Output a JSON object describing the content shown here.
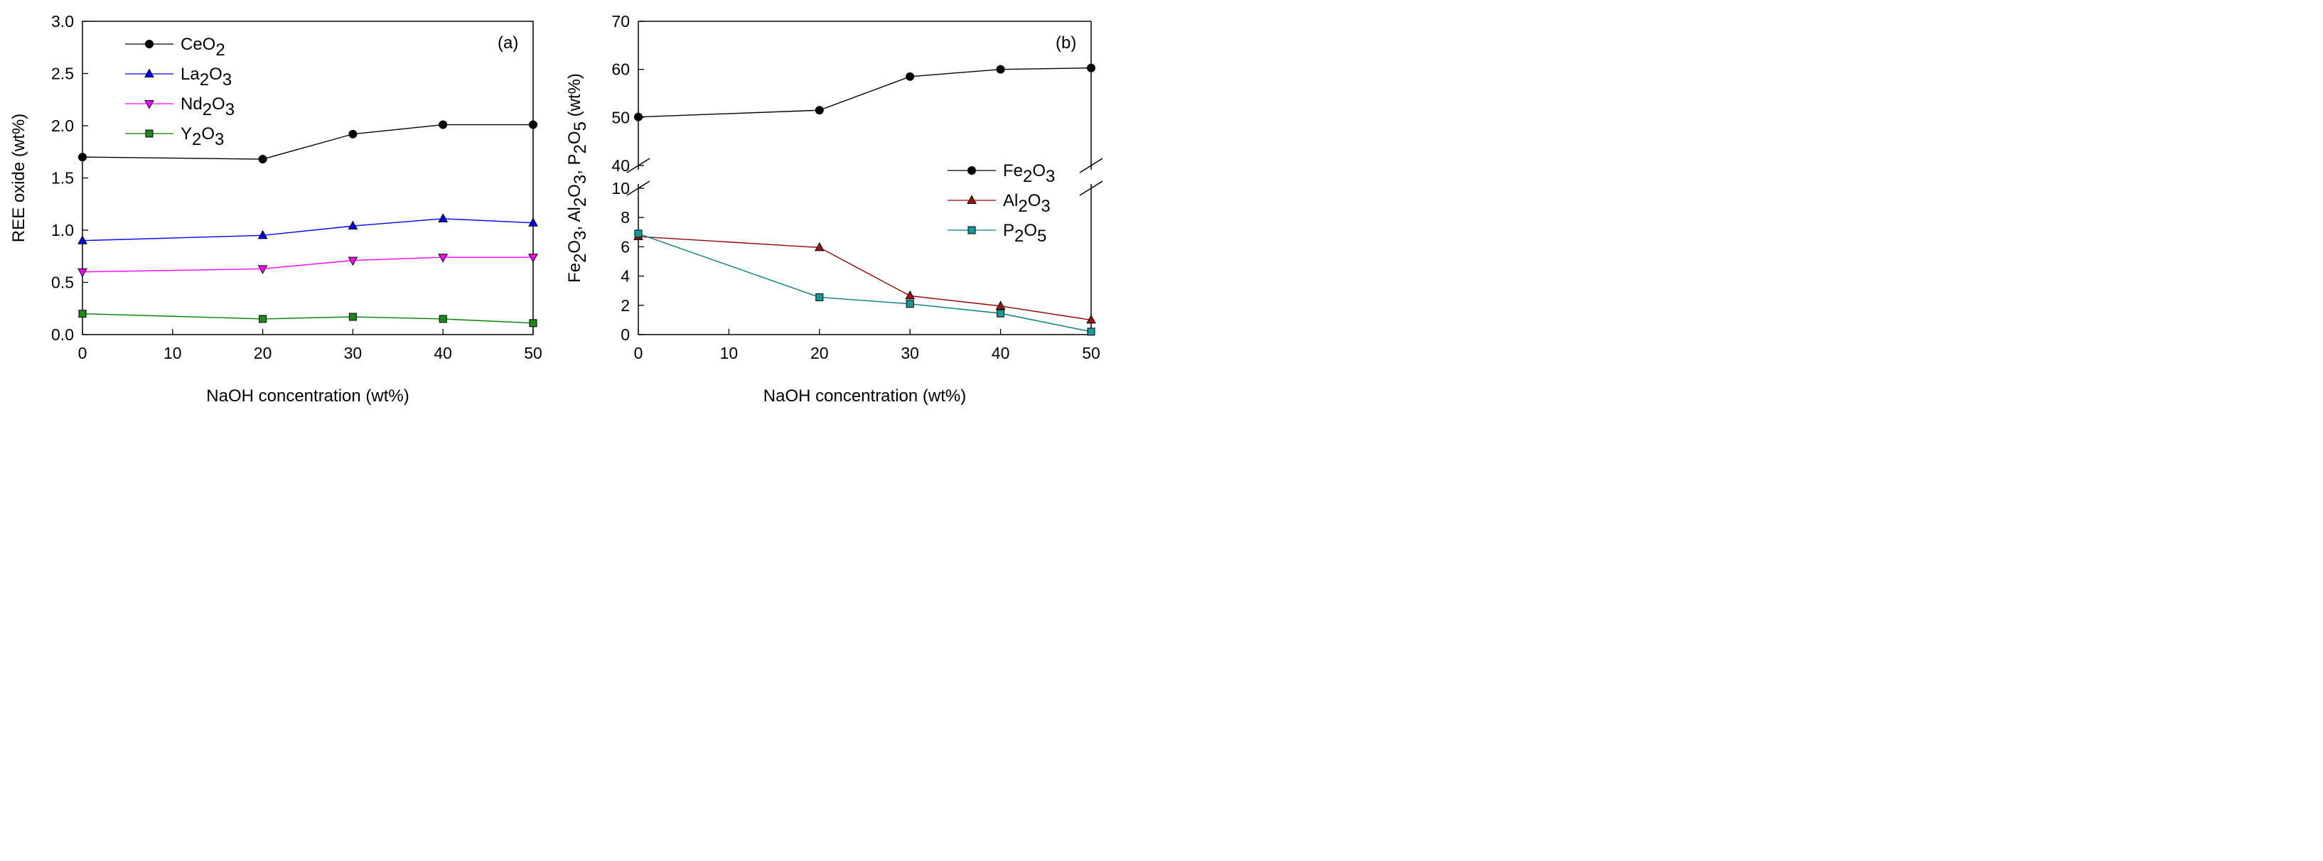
{
  "chart_data": [
    {
      "type": "line",
      "panel_label": "(a)",
      "xlabel": "NaOH concentration (wt%)",
      "ylabel": "REE oxide (wt%)",
      "xlim": [
        0,
        50
      ],
      "ylim": [
        0,
        3.0
      ],
      "xticks": [
        "0",
        "10",
        "20",
        "30",
        "40",
        "50"
      ],
      "yticks": [
        "0.0",
        "0.5",
        "1.0",
        "1.5",
        "2.0",
        "2.5",
        "3.0"
      ],
      "x": [
        0,
        20,
        30,
        40,
        50
      ],
      "legend_position": "top-left",
      "series": [
        {
          "name": "CeO2",
          "label_parts": [
            {
              "t": "CeO"
            },
            {
              "t": "2",
              "sub": true
            }
          ],
          "values": [
            1.7,
            1.68,
            1.92,
            2.01,
            2.01
          ],
          "color": "#000000",
          "marker_fill": "#000000",
          "marker": "circle"
        },
        {
          "name": "La2O3",
          "label_parts": [
            {
              "t": "La"
            },
            {
              "t": "2",
              "sub": true
            },
            {
              "t": "O"
            },
            {
              "t": "3",
              "sub": true
            }
          ],
          "values": [
            0.9,
            0.95,
            1.04,
            1.11,
            1.07
          ],
          "color": "#0000ff",
          "marker_fill": "#0000ff",
          "marker": "triangle-up"
        },
        {
          "name": "Nd2O3",
          "label_parts": [
            {
              "t": "Nd"
            },
            {
              "t": "2",
              "sub": true
            },
            {
              "t": "O"
            },
            {
              "t": "3",
              "sub": true
            }
          ],
          "values": [
            0.6,
            0.63,
            0.71,
            0.74,
            0.74
          ],
          "color": "#ff00ff",
          "marker_fill": "#ff00ff",
          "marker": "triangle-down"
        },
        {
          "name": "Y2O3",
          "label_parts": [
            {
              "t": "Y"
            },
            {
              "t": "2",
              "sub": true
            },
            {
              "t": "O"
            },
            {
              "t": "3",
              "sub": true
            }
          ],
          "values": [
            0.2,
            0.15,
            0.17,
            0.15,
            0.11
          ],
          "color": "#008000",
          "marker_fill": "#1a8a1a",
          "marker": "square"
        }
      ]
    },
    {
      "type": "line",
      "panel_label": "(b)",
      "xlabel": "NaOH concentration (wt%)",
      "ylabel_parts": [
        {
          "t": "Fe"
        },
        {
          "t": "2",
          "sub": true
        },
        {
          "t": "O"
        },
        {
          "t": "3",
          "sub": true
        },
        {
          "t": ", Al"
        },
        {
          "t": "2",
          "sub": true
        },
        {
          "t": "O"
        },
        {
          "t": "3",
          "sub": true
        },
        {
          "t": ", P"
        },
        {
          "t": "2",
          "sub": true
        },
        {
          "t": "O"
        },
        {
          "t": "5",
          "sub": true
        },
        {
          "t": " (wt%)"
        }
      ],
      "xlim": [
        0,
        50
      ],
      "xticks": [
        "0",
        "10",
        "20",
        "30",
        "40",
        "50"
      ],
      "x": [
        0,
        20,
        30,
        40,
        50
      ],
      "broken_axis": true,
      "upper_ylim": [
        40,
        70
      ],
      "upper_yticks": [
        "40",
        "50",
        "60",
        "70"
      ],
      "lower_ylim": [
        0,
        10
      ],
      "lower_yticks": [
        "0",
        "2",
        "4",
        "6",
        "8",
        "10"
      ],
      "legend_position": "bottom-right",
      "series": [
        {
          "name": "Fe2O3",
          "label_parts": [
            {
              "t": "Fe"
            },
            {
              "t": "2",
              "sub": true
            },
            {
              "t": "O"
            },
            {
              "t": "3",
              "sub": true
            }
          ],
          "values": [
            50.1,
            51.5,
            58.5,
            60.0,
            60.3
          ],
          "segment": "upper",
          "color": "#000000",
          "marker_fill": "#000000",
          "marker": "circle"
        },
        {
          "name": "Al2O3",
          "label_parts": [
            {
              "t": "Al"
            },
            {
              "t": "2",
              "sub": true
            },
            {
              "t": "O"
            },
            {
              "t": "3",
              "sub": true
            }
          ],
          "values": [
            6.7,
            5.95,
            2.65,
            1.95,
            1.0
          ],
          "segment": "lower",
          "color": "#990000",
          "marker_fill": "#a01010",
          "marker": "triangle-up"
        },
        {
          "name": "P2O5",
          "label_parts": [
            {
              "t": "P"
            },
            {
              "t": "2",
              "sub": true
            },
            {
              "t": "O"
            },
            {
              "t": "5",
              "sub": true
            }
          ],
          "values": [
            6.9,
            2.55,
            2.1,
            1.45,
            0.2
          ],
          "segment": "lower",
          "color": "#008080",
          "marker_fill": "#149a9a",
          "marker": "square"
        }
      ]
    }
  ]
}
